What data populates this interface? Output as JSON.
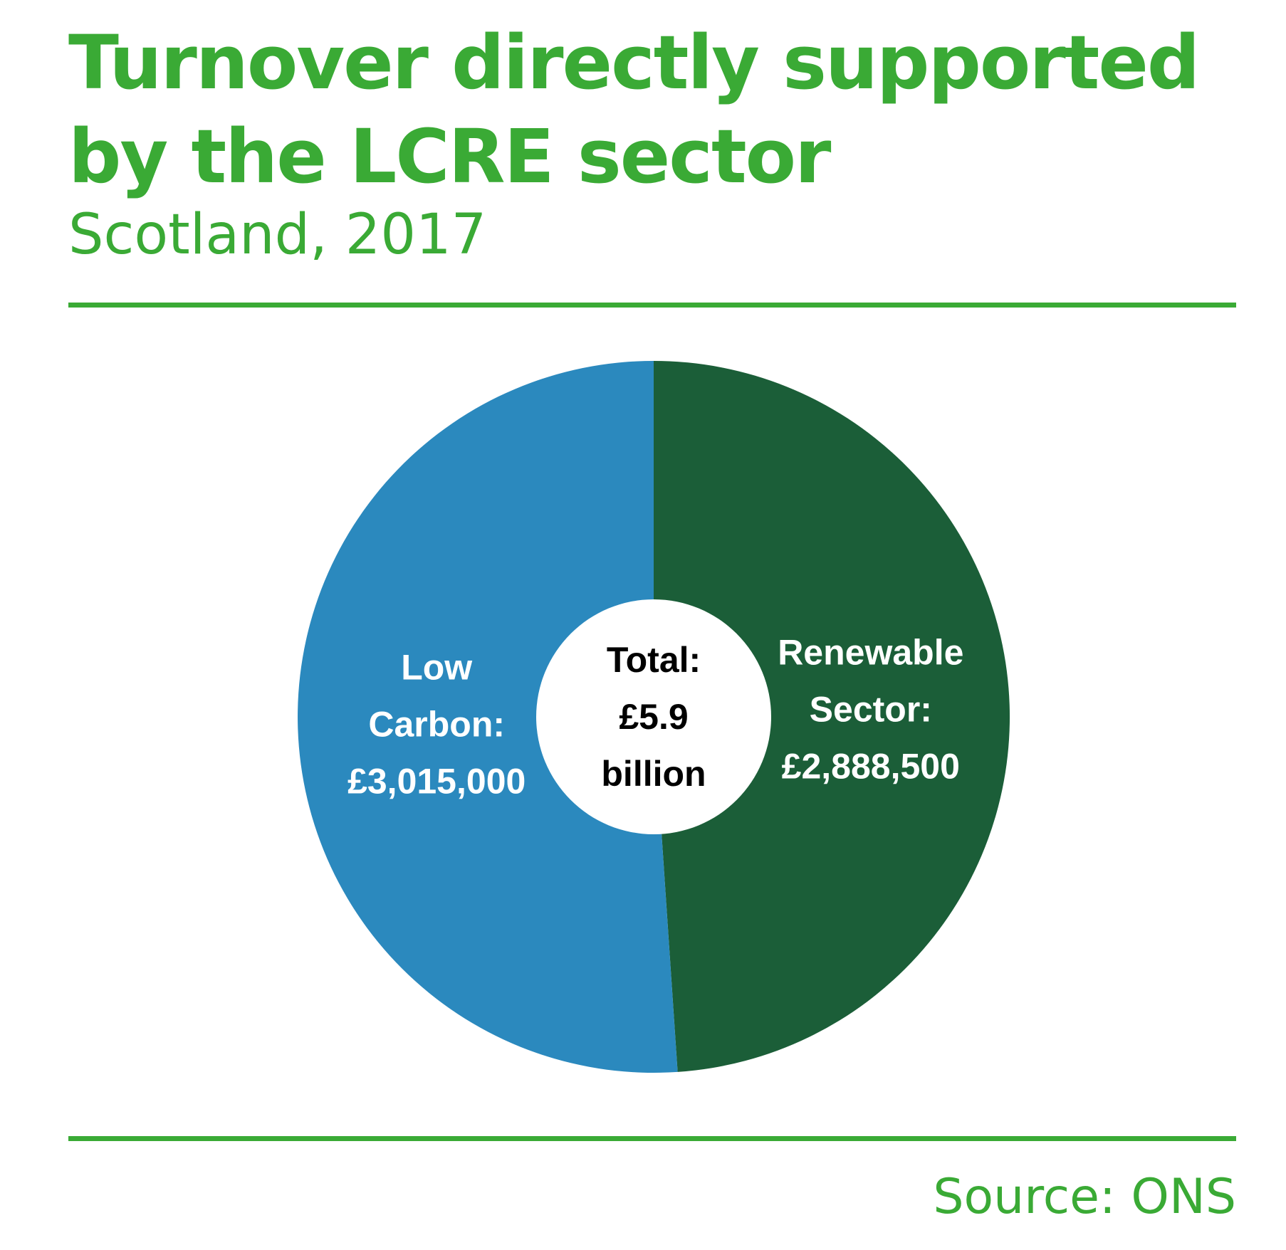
{
  "title": "Turnover directly supported by the LCRE sector",
  "subtitle": "Scotland, 2017",
  "source": "Source: ONS",
  "colors": {
    "accent": "#3aaa35",
    "low_carbon": "#2b89be",
    "renewable": "#1b5e38",
    "center": "#ffffff",
    "center_text": "#000000",
    "slice_text": "#ffffff"
  },
  "chart_data": {
    "type": "pie",
    "donut": true,
    "title": "Turnover directly supported by the LCRE sector",
    "subtitle": "Scotland, 2017",
    "center_label": {
      "lines": [
        "Total:",
        "£5.9",
        "billion"
      ]
    },
    "slices": [
      {
        "name": "Renewable Sector",
        "value": 2888500,
        "label_lines": [
          "Renewable",
          "Sector:",
          "£2,888,500"
        ],
        "color": "#1b5e38"
      },
      {
        "name": "Low Carbon",
        "value": 3015000,
        "label_lines": [
          "Low",
          "Carbon:",
          "£3,015,000"
        ],
        "color": "#2b89be"
      }
    ]
  }
}
